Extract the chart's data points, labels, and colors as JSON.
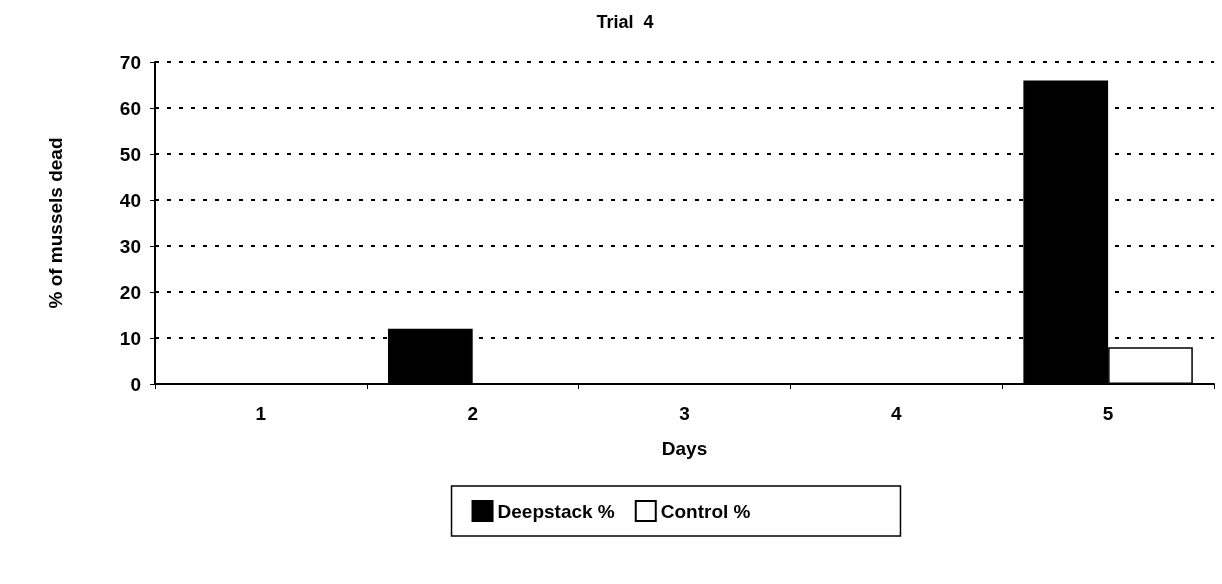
{
  "chart_data": {
    "type": "bar",
    "title": "Trial  4",
    "xlabel": "Days",
    "ylabel": "% of mussels dead",
    "categories": [
      "1",
      "2",
      "3",
      "4",
      "5"
    ],
    "series": [
      {
        "name": "Deepstack %",
        "color": "#000000",
        "values": [
          0,
          12,
          0,
          0,
          66
        ]
      },
      {
        "name": "Control %",
        "color": "#ffffff",
        "values": [
          0,
          0,
          0,
          0,
          8
        ]
      }
    ],
    "ylim": [
      0,
      70
    ],
    "yticks": [
      0,
      10,
      20,
      30,
      40,
      50,
      60,
      70
    ],
    "grid": "y",
    "legend": "bottom"
  }
}
